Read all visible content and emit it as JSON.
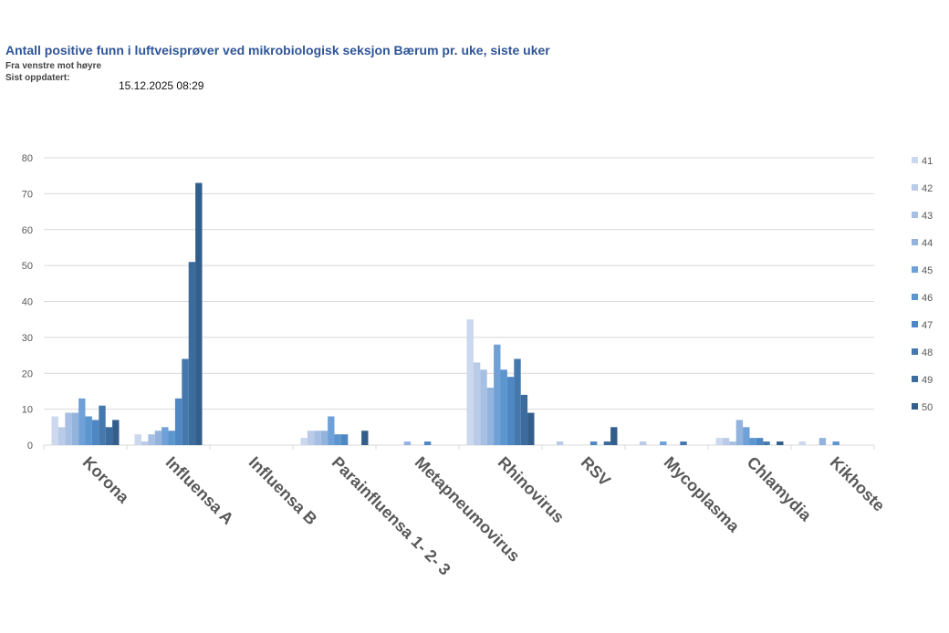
{
  "header": {
    "title": "Antall positive funn i luftveisprøver ved mikrobiologisk seksjon Bærum pr. uke, siste uker",
    "subtitle": "Fra venstre mot høyre",
    "updated_label": "Sist oppdatert:",
    "updated_value": "15.12.2025 08:29"
  },
  "chart_data": {
    "type": "bar",
    "title": "",
    "xlabel": "",
    "ylabel": "",
    "ylim": [
      0,
      80
    ],
    "yticks": [
      "0",
      "10",
      "20",
      "30",
      "40",
      "50",
      "60",
      "70",
      "80"
    ],
    "grid": true,
    "legend_placement": "right",
    "categories": [
      "Korona",
      "Influensa A",
      "Influensa B",
      "Parainfluensa 1- 2- 3",
      "Metapneumovirus",
      "Rhinovirus",
      "RSV",
      "Mycoplasma",
      "Chlamydia",
      "Kikhoste"
    ],
    "series": [
      {
        "name": "41",
        "color": "#cbd8ed",
        "values": [
          8,
          3,
          0,
          2,
          0,
          35,
          0,
          0,
          2,
          1
        ]
      },
      {
        "name": "42",
        "color": "#b9cbe8",
        "values": [
          5,
          1,
          0,
          4,
          0,
          23,
          1,
          1,
          2,
          0
        ]
      },
      {
        "name": "43",
        "color": "#a6bfe3",
        "values": [
          9,
          3,
          0,
          4,
          0,
          21,
          0,
          0,
          1,
          0
        ]
      },
      {
        "name": "44",
        "color": "#93b3dd",
        "values": [
          9,
          4,
          0,
          4,
          1,
          16,
          0,
          0,
          7,
          2
        ]
      },
      {
        "name": "45",
        "color": "#6fa0d7",
        "values": [
          13,
          5,
          0,
          8,
          0,
          28,
          0,
          1,
          5,
          0
        ]
      },
      {
        "name": "46",
        "color": "#5c96cf",
        "values": [
          8,
          4,
          0,
          3,
          0,
          21,
          0,
          0,
          2,
          1
        ]
      },
      {
        "name": "47",
        "color": "#4f87c3",
        "values": [
          7,
          13,
          0,
          3,
          1,
          19,
          1,
          0,
          2,
          0
        ]
      },
      {
        "name": "48",
        "color": "#4578ad",
        "values": [
          11,
          24,
          0,
          0,
          0,
          24,
          0,
          1,
          1,
          0
        ]
      },
      {
        "name": "49",
        "color": "#3c6b9d",
        "values": [
          5,
          51,
          0,
          0,
          0,
          14,
          1,
          0,
          0,
          0
        ]
      },
      {
        "name": "50",
        "color": "#335e8c",
        "values": [
          7,
          73,
          0,
          4,
          0,
          9,
          5,
          0,
          1,
          0
        ]
      }
    ]
  }
}
